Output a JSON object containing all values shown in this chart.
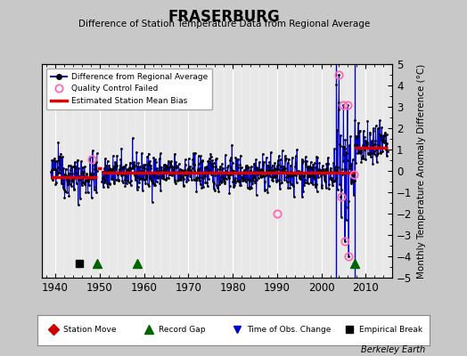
{
  "title": "FRASERBURG",
  "subtitle": "Difference of Station Temperature Data from Regional Average",
  "ylabel": "Monthly Temperature Anomaly Difference (°C)",
  "ylim": [
    -5,
    5
  ],
  "xlim": [
    1937,
    2016
  ],
  "bg_color": "#c8c8c8",
  "plot_bg_color": "#e8e8e8",
  "grid_color": "#ffffff",
  "line_color": "#0000cc",
  "dot_color": "#000000",
  "bias_color": "#dd0000",
  "qc_color": "#ff69b4",
  "station_move_color": "#cc0000",
  "record_gap_color": "#006400",
  "time_obs_color": "#0000cc",
  "empirical_break_color": "#000000",
  "berkeley_earth_text": "Berkeley Earth",
  "segments": [
    {
      "start": 1939.0,
      "end": 1949.4,
      "bias": -0.28
    },
    {
      "start": 1949.4,
      "end": 1950.5,
      "bias": 0.12
    },
    {
      "start": 1950.5,
      "end": 2003.4,
      "bias": -0.08
    },
    {
      "start": 2003.4,
      "end": 2007.6,
      "bias": -0.08
    },
    {
      "start": 2007.6,
      "end": 2015.0,
      "bias": 1.1
    }
  ],
  "record_gaps": [
    1949.4,
    1958.5,
    2007.6
  ],
  "empirical_breaks": [
    1945.5
  ],
  "qc_failed_points": [
    [
      1948.3,
      0.55
    ],
    [
      1990.0,
      -2.0
    ],
    [
      2004.0,
      4.5
    ],
    [
      2004.6,
      -1.2
    ],
    [
      2005.0,
      3.1
    ],
    [
      2005.3,
      -3.3
    ],
    [
      2005.9,
      3.1
    ],
    [
      2006.2,
      -4.0
    ],
    [
      2007.3,
      -0.15
    ]
  ],
  "excursion_verticals": [
    2003.4,
    2007.6
  ],
  "seed": 42
}
